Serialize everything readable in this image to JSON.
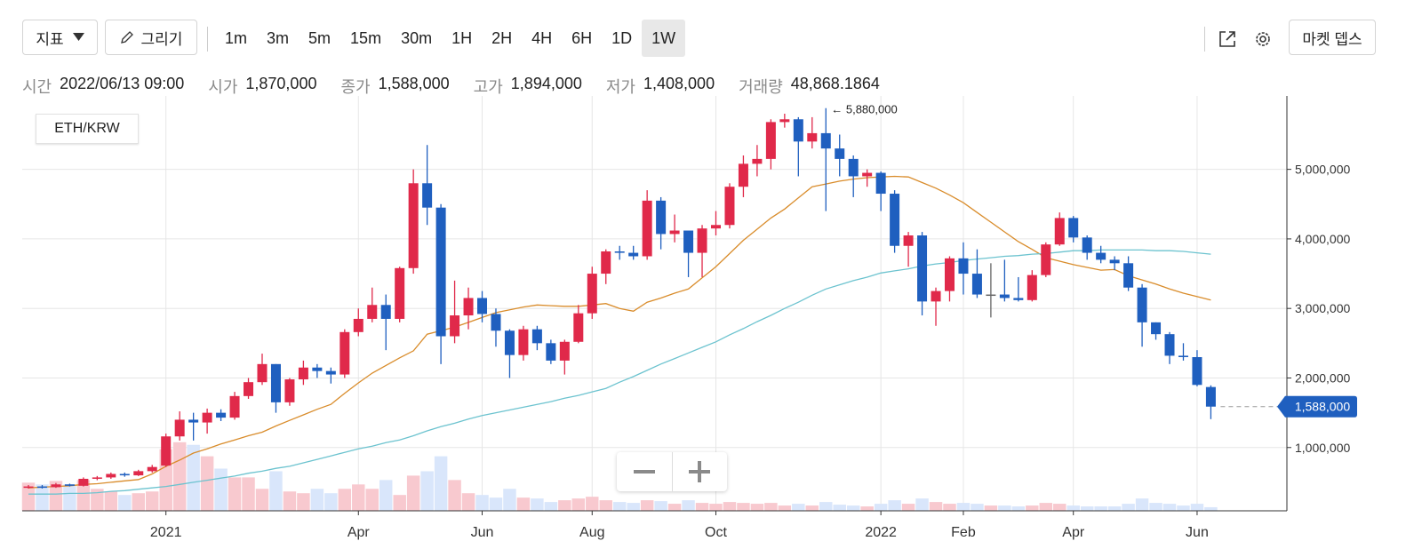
{
  "toolbar": {
    "indicator": "지표",
    "draw": "그리기",
    "intervals": [
      "1m",
      "3m",
      "5m",
      "15m",
      "30m",
      "1H",
      "2H",
      "4H",
      "6H",
      "1D",
      "1W"
    ],
    "selected": "1W",
    "depth": "마켓 뎁스"
  },
  "info": [
    {
      "label": "시간",
      "value": "2022/06/13 09:00"
    },
    {
      "label": "시가",
      "value": "1,870,000"
    },
    {
      "label": "종가",
      "value": "1,588,000"
    },
    {
      "label": "고가",
      "value": "1,894,000"
    },
    {
      "label": "저가",
      "value": "1,408,000"
    },
    {
      "label": "거래량",
      "value": "48,868.1864"
    }
  ],
  "chart_data": {
    "type": "candlestick",
    "symbol": "ETH/KRW",
    "categories": [
      null,
      null,
      null,
      null,
      null,
      null,
      null,
      null,
      null,
      null,
      "2021",
      null,
      null,
      null,
      null,
      null,
      null,
      null,
      null,
      null,
      null,
      null,
      null,
      null,
      "Apr",
      null,
      null,
      null,
      null,
      null,
      null,
      null,
      null,
      "Jun",
      null,
      null,
      null,
      null,
      null,
      null,
      null,
      "Aug",
      null,
      null,
      null,
      null,
      null,
      null,
      null,
      null,
      "Oct",
      null,
      null,
      null,
      null,
      null,
      null,
      null,
      null,
      null,
      null,
      null,
      "2022",
      null,
      null,
      null,
      null,
      null,
      "Feb",
      null,
      null,
      null,
      null,
      null,
      null,
      null,
      "Apr",
      null,
      null,
      null,
      null,
      null,
      null,
      null,
      null,
      "Jun",
      null
    ],
    "open": [
      420000,
      440000,
      430000,
      470000,
      450000,
      550000,
      570000,
      620000,
      600000,
      660000,
      740000,
      1160000,
      1400000,
      1360000,
      1500000,
      1430000,
      1740000,
      1940000,
      2200000,
      1650000,
      1980000,
      2150000,
      2100000,
      2050000,
      2660000,
      2850000,
      3050000,
      2850000,
      3580000,
      4800000,
      4450000,
      2600000,
      2900000,
      3150000,
      2920000,
      2680000,
      2330000,
      2700000,
      2500000,
      2250000,
      2520000,
      2930000,
      3500000,
      3820000,
      3800000,
      3750000,
      4550000,
      4070000,
      4120000,
      3800000,
      4150000,
      4200000,
      4750000,
      5080000,
      5150000,
      5680000,
      5720000,
      5400000,
      5520000,
      5300000,
      5150000,
      4900000,
      4950000,
      4650000,
      3900000,
      4050000,
      3100000,
      3250000,
      3720000,
      3500000,
      3200000,
      3200000,
      3150000,
      3120000,
      3480000,
      3920000,
      4300000,
      4020000,
      3800000,
      3700000,
      3650000,
      3300000,
      2800000,
      2630000,
      2320000,
      2300000,
      1870000
    ],
    "high": [
      460000,
      460000,
      490000,
      480000,
      570000,
      590000,
      640000,
      640000,
      680000,
      750000,
      1200000,
      1520000,
      1500000,
      1560000,
      1550000,
      1800000,
      2000000,
      2350000,
      2200000,
      2000000,
      2250000,
      2200000,
      2150000,
      2700000,
      3000000,
      3300000,
      3200000,
      3600000,
      5000000,
      5350000,
      4500000,
      3400000,
      3300000,
      3250000,
      3000000,
      2700000,
      2750000,
      2750000,
      2550000,
      2550000,
      3050000,
      3600000,
      3850000,
      3900000,
      3900000,
      4700000,
      4600000,
      4350000,
      4100000,
      4200000,
      4400000,
      4800000,
      5200000,
      5350000,
      5720000,
      5800000,
      5750000,
      5750000,
      5880000,
      5500000,
      5200000,
      5000000,
      4970000,
      4700000,
      4100000,
      4100000,
      3300000,
      3750000,
      3950000,
      3850000,
      3650000,
      3700000,
      3450000,
      3550000,
      3950000,
      4380000,
      4330000,
      4050000,
      3900000,
      3750000,
      3750000,
      3350000,
      2800000,
      2660000,
      2500000,
      2400000,
      1894000
    ],
    "low": [
      410000,
      410000,
      420000,
      440000,
      440000,
      530000,
      550000,
      580000,
      590000,
      640000,
      720000,
      1100000,
      1100000,
      1200000,
      1380000,
      1400000,
      1700000,
      1900000,
      1500000,
      1600000,
      1900000,
      2000000,
      1920000,
      2000000,
      2600000,
      2800000,
      2400000,
      2800000,
      3500000,
      4200000,
      2200000,
      2500000,
      2700000,
      2800000,
      2450000,
      2000000,
      2250000,
      2400000,
      2200000,
      2050000,
      2500000,
      2850000,
      3350000,
      3700000,
      3700000,
      3700000,
      3850000,
      3950000,
      3450000,
      3450000,
      4050000,
      4150000,
      4600000,
      4900000,
      5000000,
      5600000,
      4900000,
      5300000,
      4400000,
      4900000,
      4600000,
      4750000,
      4400000,
      3800000,
      3600000,
      2900000,
      2750000,
      3100000,
      3200000,
      3150000,
      2870000,
      3100000,
      3100000,
      3100000,
      3450000,
      3900000,
      3950000,
      3700000,
      3650000,
      3550000,
      3250000,
      2450000,
      2550000,
      2200000,
      2250000,
      1880000,
      1408000
    ],
    "close": [
      440000,
      430000,
      470000,
      450000,
      550000,
      570000,
      620000,
      600000,
      660000,
      720000,
      1160000,
      1400000,
      1360000,
      1500000,
      1430000,
      1740000,
      1940000,
      2200000,
      1650000,
      1980000,
      2150000,
      2100000,
      2050000,
      2660000,
      2850000,
      3050000,
      2850000,
      3580000,
      4800000,
      4450000,
      2600000,
      2900000,
      3150000,
      2920000,
      2680000,
      2330000,
      2700000,
      2500000,
      2250000,
      2520000,
      2930000,
      3500000,
      3820000,
      3800000,
      3750000,
      4550000,
      4070000,
      4120000,
      3800000,
      4150000,
      4200000,
      4750000,
      5080000,
      5150000,
      5680000,
      5720000,
      5400000,
      5520000,
      5300000,
      5150000,
      4900000,
      4950000,
      4650000,
      3900000,
      4050000,
      3100000,
      3250000,
      3720000,
      3500000,
      3200000,
      3200000,
      3150000,
      3120000,
      3480000,
      3920000,
      4300000,
      4020000,
      3800000,
      3700000,
      3650000,
      3300000,
      2800000,
      2630000,
      2320000,
      2300000,
      1900000,
      1588000
    ],
    "volume": [
      384000,
      360000,
      408000,
      360000,
      420000,
      300000,
      264000,
      216000,
      240000,
      264000,
      840000,
      936000,
      900000,
      744000,
      576000,
      456000,
      456000,
      300000,
      540000,
      264000,
      240000,
      300000,
      240000,
      300000,
      360000,
      300000,
      420000,
      216000,
      480000,
      540000,
      744000,
      420000,
      240000,
      216000,
      180000,
      300000,
      180000,
      168000,
      120000,
      144000,
      168000,
      192000,
      144000,
      120000,
      108000,
      144000,
      132000,
      96000,
      144000,
      108000,
      96000,
      120000,
      108000,
      96000,
      108000,
      72000,
      96000,
      72000,
      120000,
      84000,
      72000,
      60000,
      96000,
      144000,
      96000,
      168000,
      120000,
      96000,
      108000,
      96000,
      72000,
      72000,
      60000,
      72000,
      108000,
      96000,
      72000,
      60000,
      60000,
      60000,
      96000,
      168000,
      108000,
      96000,
      72000,
      96000,
      48868.1864
    ],
    "volume_lim": [
      0,
      800000
    ],
    "lines": [
      {
        "color": "#d98c2b",
        "values": [
          420000,
          430000,
          440000,
          450000,
          470000,
          480000,
          500000,
          520000,
          540000,
          620000,
          730000,
          820000,
          920000,
          980000,
          1050000,
          1110000,
          1170000,
          1220000,
          1310000,
          1390000,
          1470000,
          1550000,
          1620000,
          1780000,
          1930000,
          2070000,
          2180000,
          2290000,
          2390000,
          2630000,
          2680000,
          2730000,
          2800000,
          2870000,
          2940000,
          2980000,
          3020000,
          3050000,
          3040000,
          3030000,
          3030000,
          3050000,
          3070000,
          3000000,
          2960000,
          3090000,
          3150000,
          3220000,
          3280000,
          3440000,
          3600000,
          3790000,
          3980000,
          4140000,
          4300000,
          4430000,
          4590000,
          4750000,
          4790000,
          4830000,
          4860000,
          4880000,
          4890000,
          4900000,
          4890000,
          4810000,
          4730000,
          4630000,
          4520000,
          4380000,
          4240000,
          4100000,
          3960000,
          3850000,
          3730000,
          3680000,
          3630000,
          3590000,
          3550000,
          3560000,
          3470000,
          3410000,
          3350000,
          3280000,
          3220000,
          3170000,
          3120000
        ]
      },
      {
        "color": "#6cc3cf",
        "values": [
          330000,
          330000,
          330000,
          340000,
          340000,
          350000,
          370000,
          380000,
          400000,
          420000,
          440000,
          470000,
          500000,
          530000,
          560000,
          590000,
          630000,
          660000,
          700000,
          730000,
          780000,
          830000,
          880000,
          930000,
          980000,
          1020000,
          1070000,
          1110000,
          1170000,
          1240000,
          1300000,
          1350000,
          1410000,
          1460000,
          1500000,
          1540000,
          1580000,
          1620000,
          1660000,
          1710000,
          1750000,
          1800000,
          1850000,
          1940000,
          2020000,
          2110000,
          2200000,
          2280000,
          2360000,
          2440000,
          2520000,
          2620000,
          2710000,
          2810000,
          2900000,
          3000000,
          3090000,
          3190000,
          3280000,
          3340000,
          3400000,
          3450000,
          3510000,
          3540000,
          3570000,
          3610000,
          3640000,
          3660000,
          3690000,
          3710000,
          3730000,
          3750000,
          3760000,
          3780000,
          3790000,
          3810000,
          3830000,
          3830000,
          3840000,
          3840000,
          3840000,
          3840000,
          3830000,
          3830000,
          3820000,
          3800000,
          3780000
        ]
      }
    ],
    "up_color": "#e0294a",
    "down_color": "#1f5fbf",
    "flat_color": "#666666",
    "volume_up_color": "#f8c9cf",
    "volume_down_color": "#d9e6fb",
    "ylim": [
      90000,
      6030000
    ],
    "yticks": [
      {
        "value": 1000000,
        "label": "1,000,000"
      },
      {
        "value": 2000000,
        "label": "2,000,000"
      },
      {
        "value": 3000000,
        "label": "3,000,000"
      },
      {
        "value": 4000000,
        "label": "4,000,000"
      },
      {
        "value": 5000000,
        "label": "5,000,000"
      }
    ],
    "grid": true,
    "high_annotation": "← 5,880,000",
    "last_price_label": "1,588,000"
  }
}
